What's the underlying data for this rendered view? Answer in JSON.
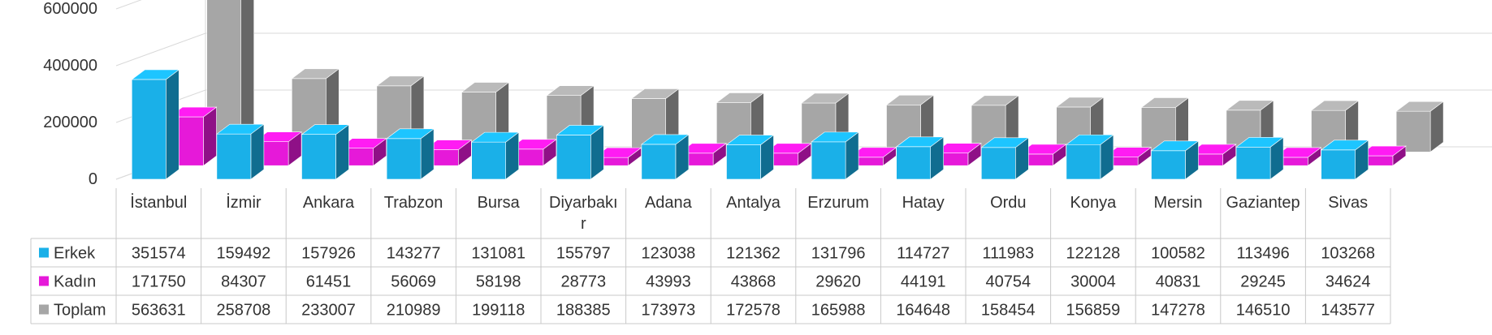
{
  "chart_data": {
    "type": "bar",
    "style": "3d-column-with-data-table",
    "categories": [
      "İstanbul",
      "İzmir",
      "Ankara",
      "Trabzon",
      "Bursa",
      "Diyarbakır",
      "Adana",
      "Antalya",
      "Erzurum",
      "Hatay",
      "Ordu",
      "Konya",
      "Mersin",
      "Gaziantep",
      "Sivas"
    ],
    "series": [
      {
        "name": "Erkek",
        "color": "#1ab0e8",
        "values": [
          351574,
          159492,
          157926,
          143277,
          131081,
          155797,
          123038,
          121362,
          131796,
          114727,
          111983,
          122128,
          100582,
          113496,
          103268
        ]
      },
      {
        "name": "Kadın",
        "color": "#e619d9",
        "values": [
          171750,
          84307,
          61451,
          56069,
          58198,
          28773,
          43993,
          43868,
          29620,
          44191,
          40754,
          30004,
          40831,
          29245,
          34624
        ]
      },
      {
        "name": "Toplam",
        "color": "#a6a6a6",
        "values": [
          563631,
          258708,
          233007,
          210989,
          199118,
          188385,
          173973,
          172578,
          165988,
          164648,
          158454,
          156859,
          147278,
          146510,
          143577
        ]
      }
    ],
    "yaxis": {
      "ticks": [
        "0",
        "200000",
        "400000",
        "600000"
      ],
      "range": [
        0,
        600000
      ]
    },
    "grid": true,
    "legend": "data-table-left"
  }
}
